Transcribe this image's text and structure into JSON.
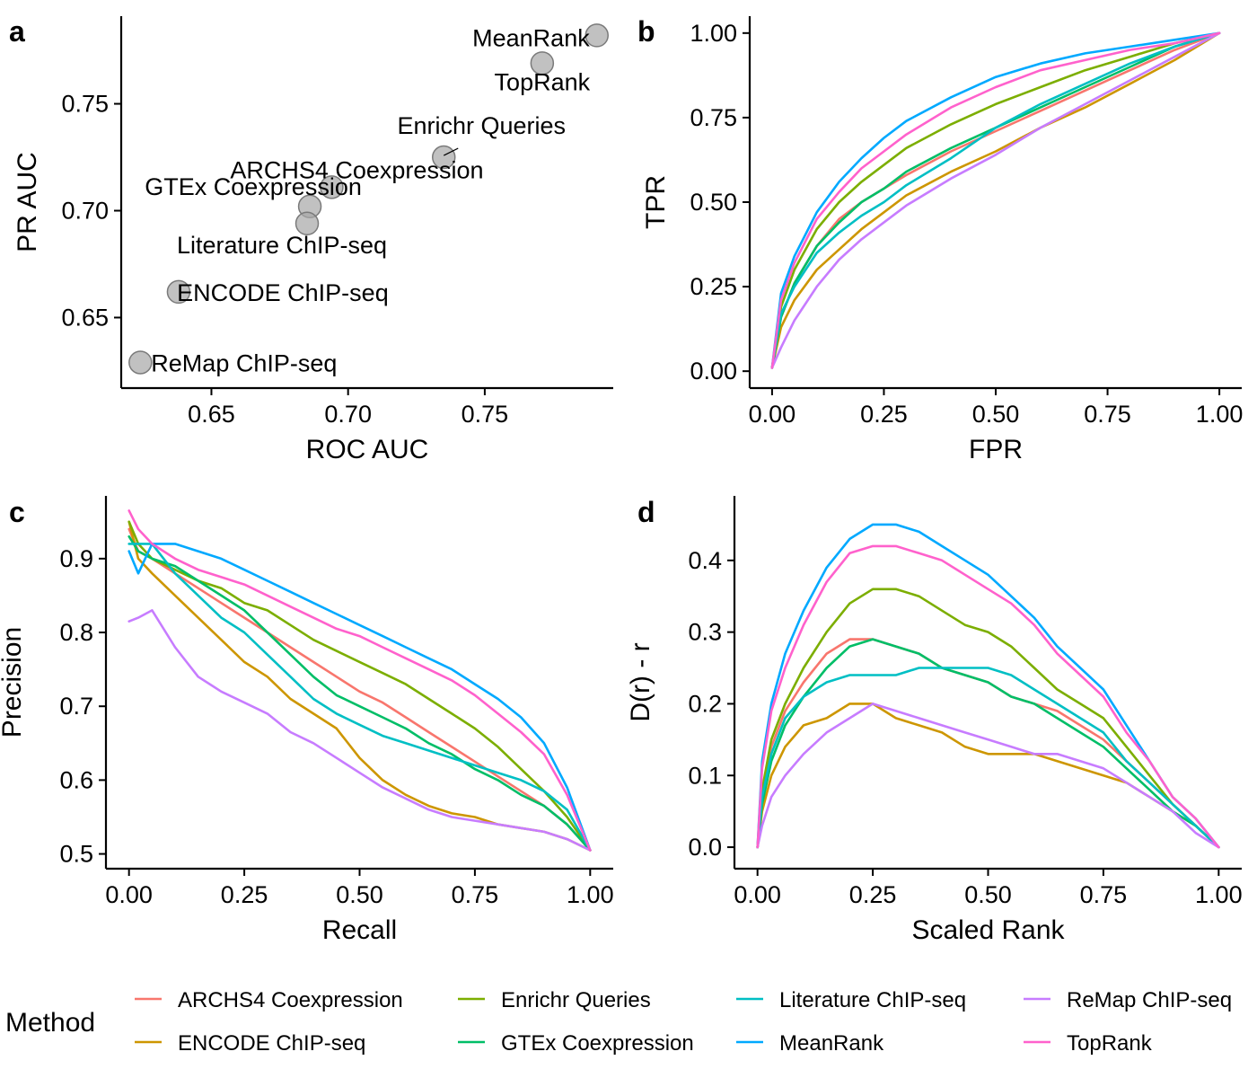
{
  "colors": {
    "ARCHS4 Coexpression": "#F8766D",
    "ENCODE ChIP-seq": "#CD9600",
    "Enrichr Queries": "#7CAE00",
    "GTEx Coexpression": "#00BE67",
    "Literature ChIP-seq": "#00BFC4",
    "MeanRank": "#00A9FF",
    "ReMap ChIP-seq": "#C77CFF",
    "TopRank": "#FF61CC"
  },
  "legend": {
    "title": "Method",
    "entries": [
      "ARCHS4 Coexpression",
      "ENCODE ChIP-seq",
      "Enrichr Queries",
      "GTEx Coexpression",
      "Literature ChIP-seq",
      "MeanRank",
      "ReMap ChIP-seq",
      "TopRank"
    ]
  },
  "chart_data": [
    {
      "panel": "a",
      "type": "scatter",
      "xlabel": "ROC AUC",
      "ylabel": "PR AUC",
      "xlim": [
        0.617,
        0.797
      ],
      "ylim": [
        0.617,
        0.791
      ],
      "xticks": [
        "0.65",
        "0.70",
        "0.75"
      ],
      "yticks": [
        "0.65",
        "0.70",
        "0.75"
      ],
      "points": [
        {
          "label": "MeanRank",
          "x": 0.791,
          "y": 0.782
        },
        {
          "label": "TopRank",
          "x": 0.771,
          "y": 0.769
        },
        {
          "label": "Enrichr Queries",
          "x": 0.735,
          "y": 0.725
        },
        {
          "label": "ARCHS4 Coexpression",
          "x": 0.694,
          "y": 0.711
        },
        {
          "label": "GTEx Coexpression",
          "x": 0.686,
          "y": 0.702
        },
        {
          "label": "Literature ChIP-seq",
          "x": 0.685,
          "y": 0.694
        },
        {
          "label": "ENCODE ChIP-seq",
          "x": 0.638,
          "y": 0.662
        },
        {
          "label": "ReMap ChIP-seq",
          "x": 0.624,
          "y": 0.629
        }
      ]
    },
    {
      "panel": "b",
      "type": "line",
      "xlabel": "FPR",
      "ylabel": "TPR",
      "xlim": [
        -0.05,
        1.05
      ],
      "ylim": [
        -0.05,
        1.05
      ],
      "xticks": [
        "0.00",
        "0.25",
        "0.50",
        "0.75",
        "1.00"
      ],
      "yticks": [
        "0.00",
        "0.25",
        "0.50",
        "0.75",
        "1.00"
      ],
      "x": [
        0,
        0.02,
        0.05,
        0.1,
        0.15,
        0.2,
        0.25,
        0.3,
        0.4,
        0.5,
        0.6,
        0.7,
        0.8,
        0.9,
        1.0
      ],
      "series": [
        {
          "name": "ARCHS4 Coexpression",
          "values": [
            0.01,
            0.16,
            0.26,
            0.37,
            0.45,
            0.5,
            0.54,
            0.58,
            0.65,
            0.71,
            0.77,
            0.83,
            0.89,
            0.95,
            1.0
          ]
        },
        {
          "name": "ENCODE ChIP-seq",
          "values": [
            0.01,
            0.13,
            0.21,
            0.3,
            0.36,
            0.42,
            0.47,
            0.52,
            0.59,
            0.65,
            0.72,
            0.78,
            0.85,
            0.92,
            1.0
          ]
        },
        {
          "name": "Enrichr Queries",
          "values": [
            0.01,
            0.19,
            0.3,
            0.42,
            0.5,
            0.56,
            0.61,
            0.66,
            0.73,
            0.79,
            0.84,
            0.89,
            0.93,
            0.97,
            1.0
          ]
        },
        {
          "name": "GTEx Coexpression",
          "values": [
            0.01,
            0.16,
            0.26,
            0.37,
            0.44,
            0.5,
            0.54,
            0.59,
            0.66,
            0.72,
            0.78,
            0.84,
            0.9,
            0.96,
            1.0
          ]
        },
        {
          "name": "Literature ChIP-seq",
          "values": [
            0.01,
            0.17,
            0.25,
            0.35,
            0.41,
            0.46,
            0.5,
            0.55,
            0.63,
            0.72,
            0.79,
            0.85,
            0.91,
            0.96,
            1.0
          ]
        },
        {
          "name": "MeanRank",
          "values": [
            0.01,
            0.23,
            0.34,
            0.47,
            0.56,
            0.63,
            0.69,
            0.74,
            0.81,
            0.87,
            0.91,
            0.94,
            0.96,
            0.98,
            1.0
          ]
        },
        {
          "name": "ReMap ChIP-seq",
          "values": [
            0.01,
            0.07,
            0.15,
            0.25,
            0.33,
            0.39,
            0.44,
            0.49,
            0.57,
            0.64,
            0.72,
            0.79,
            0.86,
            0.93,
            1.0
          ]
        },
        {
          "name": "TopRank",
          "values": [
            0.01,
            0.21,
            0.32,
            0.45,
            0.53,
            0.6,
            0.65,
            0.7,
            0.78,
            0.84,
            0.89,
            0.92,
            0.95,
            0.97,
            1.0
          ]
        }
      ]
    },
    {
      "panel": "c",
      "type": "line",
      "xlabel": "Recall",
      "ylabel": "Precision",
      "xlim": [
        -0.05,
        1.05
      ],
      "ylim": [
        0.48,
        0.985
      ],
      "xticks": [
        "0.00",
        "0.25",
        "0.50",
        "0.75",
        "1.00"
      ],
      "yticks": [
        "0.5",
        "0.6",
        "0.7",
        "0.8",
        "0.9"
      ],
      "x": [
        0.0,
        0.02,
        0.05,
        0.1,
        0.15,
        0.2,
        0.25,
        0.3,
        0.35,
        0.4,
        0.45,
        0.5,
        0.55,
        0.6,
        0.65,
        0.7,
        0.75,
        0.8,
        0.85,
        0.9,
        0.95,
        1.0
      ],
      "series": [
        {
          "name": "ARCHS4 Coexpression",
          "values": [
            0.94,
            0.91,
            0.9,
            0.88,
            0.86,
            0.84,
            0.82,
            0.8,
            0.78,
            0.76,
            0.74,
            0.72,
            0.705,
            0.685,
            0.665,
            0.645,
            0.625,
            0.605,
            0.585,
            0.565,
            0.54,
            0.505
          ]
        },
        {
          "name": "ENCODE ChIP-seq",
          "values": [
            0.95,
            0.9,
            0.88,
            0.85,
            0.82,
            0.79,
            0.76,
            0.74,
            0.71,
            0.69,
            0.67,
            0.63,
            0.6,
            0.58,
            0.565,
            0.555,
            0.55,
            0.54,
            0.535,
            0.53,
            0.52,
            0.505
          ]
        },
        {
          "name": "Enrichr Queries",
          "values": [
            0.95,
            0.92,
            0.9,
            0.885,
            0.87,
            0.86,
            0.84,
            0.83,
            0.81,
            0.79,
            0.775,
            0.76,
            0.745,
            0.73,
            0.71,
            0.69,
            0.67,
            0.645,
            0.615,
            0.585,
            0.55,
            0.505
          ]
        },
        {
          "name": "GTEx Coexpression",
          "values": [
            0.93,
            0.91,
            0.9,
            0.89,
            0.87,
            0.85,
            0.83,
            0.8,
            0.77,
            0.74,
            0.715,
            0.7,
            0.685,
            0.67,
            0.65,
            0.635,
            0.615,
            0.6,
            0.58,
            0.565,
            0.54,
            0.505
          ]
        },
        {
          "name": "Literature ChIP-seq",
          "values": [
            0.92,
            0.92,
            0.92,
            0.88,
            0.85,
            0.82,
            0.8,
            0.77,
            0.74,
            0.71,
            0.69,
            0.675,
            0.66,
            0.65,
            0.64,
            0.63,
            0.62,
            0.61,
            0.6,
            0.585,
            0.56,
            0.505
          ]
        },
        {
          "name": "MeanRank",
          "values": [
            0.91,
            0.88,
            0.92,
            0.92,
            0.91,
            0.9,
            0.885,
            0.87,
            0.855,
            0.84,
            0.825,
            0.81,
            0.795,
            0.78,
            0.765,
            0.75,
            0.73,
            0.71,
            0.685,
            0.65,
            0.59,
            0.505
          ]
        },
        {
          "name": "ReMap ChIP-seq",
          "values": [
            0.815,
            0.82,
            0.83,
            0.78,
            0.74,
            0.72,
            0.705,
            0.69,
            0.665,
            0.65,
            0.63,
            0.61,
            0.59,
            0.575,
            0.56,
            0.55,
            0.545,
            0.54,
            0.535,
            0.53,
            0.52,
            0.505
          ]
        },
        {
          "name": "TopRank",
          "values": [
            0.965,
            0.94,
            0.92,
            0.9,
            0.885,
            0.875,
            0.865,
            0.85,
            0.835,
            0.82,
            0.805,
            0.795,
            0.78,
            0.765,
            0.75,
            0.735,
            0.715,
            0.69,
            0.665,
            0.635,
            0.58,
            0.505
          ]
        }
      ]
    },
    {
      "panel": "d",
      "type": "line",
      "xlabel": "Scaled Rank",
      "ylabel": "D(r) - r",
      "xlim": [
        -0.05,
        1.05
      ],
      "ylim": [
        -0.03,
        0.49
      ],
      "xticks": [
        "0.00",
        "0.25",
        "0.50",
        "0.75",
        "1.00"
      ],
      "yticks": [
        "0.0",
        "0.1",
        "0.2",
        "0.3",
        "0.4"
      ],
      "x": [
        0.0,
        0.01,
        0.03,
        0.06,
        0.1,
        0.15,
        0.2,
        0.25,
        0.3,
        0.35,
        0.4,
        0.45,
        0.5,
        0.55,
        0.6,
        0.65,
        0.7,
        0.75,
        0.8,
        0.85,
        0.9,
        0.95,
        1.0
      ],
      "series": [
        {
          "name": "ARCHS4 Coexpression",
          "values": [
            0.0,
            0.07,
            0.14,
            0.19,
            0.23,
            0.27,
            0.29,
            0.29,
            0.28,
            0.27,
            0.25,
            0.24,
            0.23,
            0.21,
            0.2,
            0.19,
            0.17,
            0.15,
            0.12,
            0.09,
            0.06,
            0.03,
            0.0
          ]
        },
        {
          "name": "ENCODE ChIP-seq",
          "values": [
            0.0,
            0.05,
            0.1,
            0.14,
            0.17,
            0.18,
            0.2,
            0.2,
            0.18,
            0.17,
            0.16,
            0.14,
            0.13,
            0.13,
            0.13,
            0.12,
            0.11,
            0.1,
            0.09,
            0.07,
            0.05,
            0.03,
            0.0
          ]
        },
        {
          "name": "Enrichr Queries",
          "values": [
            0.0,
            0.08,
            0.15,
            0.2,
            0.25,
            0.3,
            0.34,
            0.36,
            0.36,
            0.35,
            0.33,
            0.31,
            0.3,
            0.28,
            0.25,
            0.22,
            0.2,
            0.18,
            0.14,
            0.1,
            0.06,
            0.03,
            0.0
          ]
        },
        {
          "name": "GTEx Coexpression",
          "values": [
            0.0,
            0.06,
            0.12,
            0.17,
            0.21,
            0.25,
            0.28,
            0.29,
            0.28,
            0.27,
            0.25,
            0.24,
            0.23,
            0.21,
            0.2,
            0.18,
            0.16,
            0.14,
            0.11,
            0.08,
            0.05,
            0.03,
            0.0
          ]
        },
        {
          "name": "Literature ChIP-seq",
          "values": [
            0.0,
            0.07,
            0.13,
            0.18,
            0.21,
            0.23,
            0.24,
            0.24,
            0.24,
            0.25,
            0.25,
            0.25,
            0.25,
            0.24,
            0.22,
            0.2,
            0.18,
            0.16,
            0.12,
            0.09,
            0.06,
            0.03,
            0.0
          ]
        },
        {
          "name": "MeanRank",
          "values": [
            0.0,
            0.12,
            0.2,
            0.27,
            0.33,
            0.39,
            0.43,
            0.45,
            0.45,
            0.44,
            0.42,
            0.4,
            0.38,
            0.35,
            0.32,
            0.28,
            0.25,
            0.22,
            0.17,
            0.12,
            0.07,
            0.04,
            0.0
          ]
        },
        {
          "name": "ReMap ChIP-seq",
          "values": [
            0.0,
            0.03,
            0.07,
            0.1,
            0.13,
            0.16,
            0.18,
            0.2,
            0.19,
            0.18,
            0.17,
            0.16,
            0.15,
            0.14,
            0.13,
            0.13,
            0.12,
            0.11,
            0.09,
            0.07,
            0.05,
            0.02,
            0.0
          ]
        },
        {
          "name": "TopRank",
          "values": [
            0.0,
            0.11,
            0.19,
            0.25,
            0.31,
            0.37,
            0.41,
            0.42,
            0.42,
            0.41,
            0.4,
            0.38,
            0.36,
            0.34,
            0.31,
            0.27,
            0.24,
            0.21,
            0.16,
            0.12,
            0.07,
            0.04,
            0.0
          ]
        }
      ]
    }
  ]
}
